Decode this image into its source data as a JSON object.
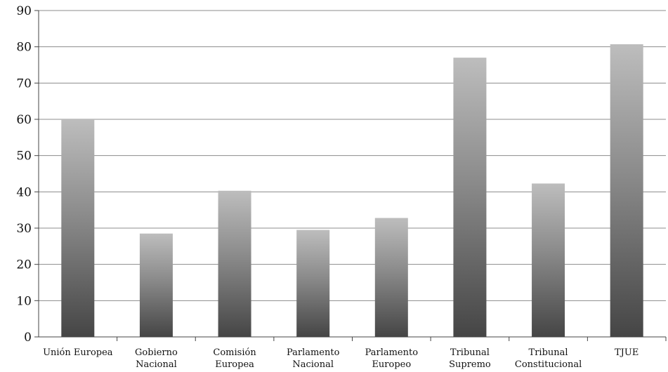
{
  "chart_data": {
    "type": "bar",
    "title": "",
    "xlabel": "",
    "ylabel": "",
    "ylim": [
      0,
      90
    ],
    "yticks": [
      0,
      10,
      20,
      30,
      40,
      50,
      60,
      70,
      80,
      90
    ],
    "grid": true,
    "legend": "none",
    "categories": [
      [
        "Unión Europea"
      ],
      [
        "Gobierno",
        "Nacional"
      ],
      [
        "Comisión",
        "Europea"
      ],
      [
        "Parlamento",
        "Nacional"
      ],
      [
        "Parlamento",
        "Europeo"
      ],
      [
        "Tribunal",
        "Supremo"
      ],
      [
        "Tribunal",
        "Constitucional"
      ],
      [
        "TJUE"
      ]
    ],
    "series": [
      {
        "values": [
          60,
          28.5,
          40.3,
          29.5,
          32.8,
          77,
          42.3,
          80.7
        ]
      }
    ],
    "colors": {
      "bar_top": "#bdbdbd",
      "bar_mid": "#8a8a8a",
      "bar_bottom": "#454545",
      "grid": "#8c8c8c",
      "axis": "#444444"
    }
  }
}
